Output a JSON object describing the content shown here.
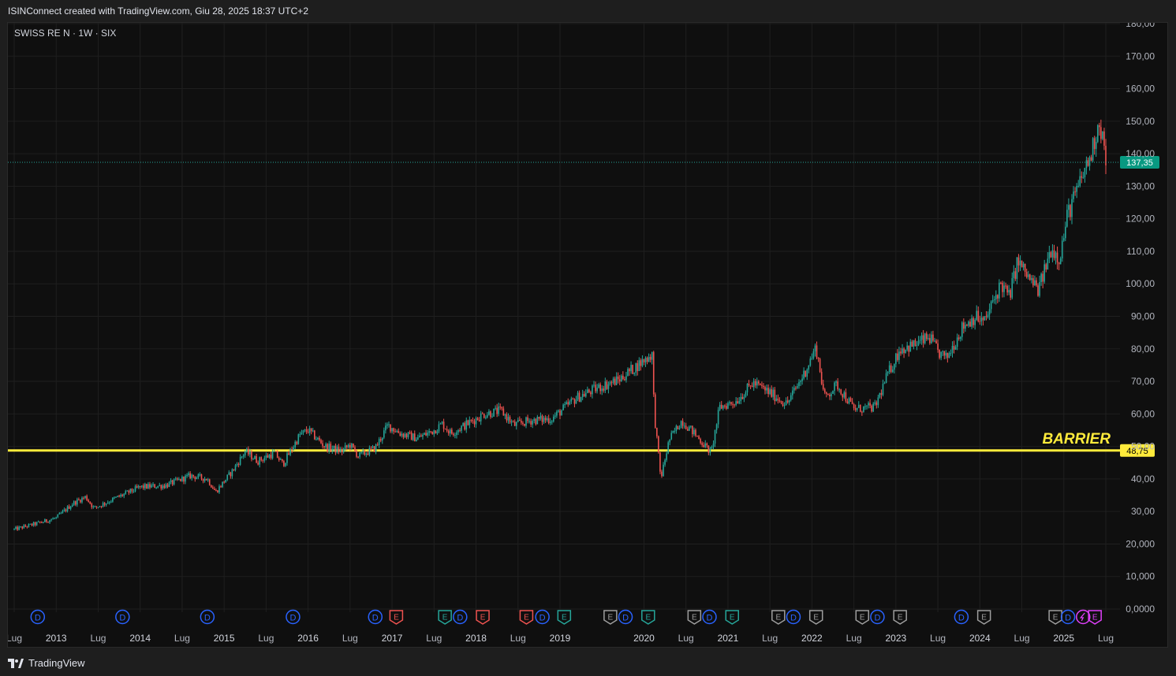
{
  "header": {
    "caption": "ISINConnect created with TradingView.com, Giu 28, 2025 18:37 UTC+2"
  },
  "footer": {
    "brand": "TradingView"
  },
  "colors": {
    "background": "#0f0f0f",
    "up": "#26a69a",
    "down": "#ef5350",
    "barrier": "#ffeb3b",
    "grid": "#1f1f1f",
    "dividend": "#2962ff",
    "earnings_gray": "#9e9e9e",
    "split": "#e040fb"
  },
  "chart_data": {
    "type": "candlestick",
    "symbol_label": "SWISS RE N · 1W · SIX",
    "y_axis": {
      "ticks": [
        "180,00",
        "170,00",
        "160,00",
        "150,00",
        "140,00",
        "130,00",
        "120,00",
        "110,00",
        "100,00",
        "90,00",
        "80,00",
        "70,00",
        "60,00",
        "50,00",
        "40,00",
        "30,00",
        "20,000",
        "10,000",
        "0,0000"
      ],
      "tick_values": [
        180,
        170,
        160,
        150,
        140,
        130,
        120,
        110,
        100,
        90,
        80,
        70,
        60,
        50,
        40,
        30,
        20,
        10,
        0
      ],
      "ylim": [
        0,
        180
      ]
    },
    "x_axis": {
      "labels": [
        {
          "t": "Lug",
          "d": 2012.5
        },
        {
          "t": "2013",
          "d": 2013.0
        },
        {
          "t": "Lug",
          "d": 2013.5
        },
        {
          "t": "2014",
          "d": 2014.0
        },
        {
          "t": "Lug",
          "d": 2014.5
        },
        {
          "t": "2015",
          "d": 2015.0
        },
        {
          "t": "Lug",
          "d": 2015.5
        },
        {
          "t": "2016",
          "d": 2016.0
        },
        {
          "t": "Lug",
          "d": 2016.5
        },
        {
          "t": "2017",
          "d": 2017.0
        },
        {
          "t": "Lug",
          "d": 2017.5
        },
        {
          "t": "2018",
          "d": 2018.0
        },
        {
          "t": "Lug",
          "d": 2018.5
        },
        {
          "t": "2019",
          "d": 2019.0
        },
        {
          "t": "2020",
          "d": 2020.0
        },
        {
          "t": "Lug",
          "d": 2020.5
        },
        {
          "t": "2021",
          "d": 2021.0
        },
        {
          "t": "Lug",
          "d": 2021.5
        },
        {
          "t": "2022",
          "d": 2022.0
        },
        {
          "t": "Lug",
          "d": 2022.5
        },
        {
          "t": "2023",
          "d": 2023.0
        },
        {
          "t": "Lug",
          "d": 2023.5
        },
        {
          "t": "2024",
          "d": 2024.0
        },
        {
          "t": "Lug",
          "d": 2024.5
        },
        {
          "t": "2025",
          "d": 2025.0
        },
        {
          "t": "Lug",
          "d": 2025.5
        }
      ],
      "xlim": [
        2012.5,
        2025.5
      ]
    },
    "price_path": [
      [
        2012.5,
        24.5
      ],
      [
        2012.8,
        26.5
      ],
      [
        2013.0,
        28.0
      ],
      [
        2013.2,
        32.5
      ],
      [
        2013.35,
        34.5
      ],
      [
        2013.45,
        31.0
      ],
      [
        2013.7,
        34.0
      ],
      [
        2014.0,
        37.5
      ],
      [
        2014.3,
        38.0
      ],
      [
        2014.6,
        41.0
      ],
      [
        2014.8,
        40.0
      ],
      [
        2014.9,
        36.0
      ],
      [
        2015.1,
        42.5
      ],
      [
        2015.25,
        48.5
      ],
      [
        2015.4,
        45.5
      ],
      [
        2015.6,
        48.0
      ],
      [
        2015.7,
        44.5
      ],
      [
        2015.9,
        53.5
      ],
      [
        2016.0,
        55.0
      ],
      [
        2016.2,
        50.0
      ],
      [
        2016.4,
        48.5
      ],
      [
        2016.5,
        50.5
      ],
      [
        2016.6,
        47.0
      ],
      [
        2016.8,
        49.5
      ],
      [
        2016.95,
        56.5
      ],
      [
        2017.1,
        54.0
      ],
      [
        2017.3,
        52.5
      ],
      [
        2017.5,
        55.0
      ],
      [
        2017.6,
        57.0
      ],
      [
        2017.7,
        54.0
      ],
      [
        2017.9,
        57.0
      ],
      [
        2018.1,
        60.0
      ],
      [
        2018.3,
        61.0
      ],
      [
        2018.45,
        56.5
      ],
      [
        2018.65,
        58.0
      ],
      [
        2018.9,
        58.5
      ],
      [
        2019.2,
        65.0
      ],
      [
        2019.45,
        68.0
      ],
      [
        2019.7,
        70.5
      ],
      [
        2019.95,
        75.5
      ],
      [
        2020.1,
        78.5
      ],
      [
        2020.12,
        61.0
      ],
      [
        2020.2,
        40.0
      ],
      [
        2020.3,
        52.0
      ],
      [
        2020.45,
        58.0
      ],
      [
        2020.6,
        54.0
      ],
      [
        2020.8,
        48.0
      ],
      [
        2020.9,
        62.0
      ],
      [
        2021.1,
        64.0
      ],
      [
        2021.3,
        69.5
      ],
      [
        2021.5,
        66.5
      ],
      [
        2021.7,
        63.0
      ],
      [
        2021.9,
        72.0
      ],
      [
        2022.05,
        80.5
      ],
      [
        2022.15,
        65.0
      ],
      [
        2022.3,
        69.0
      ],
      [
        2022.5,
        61.5
      ],
      [
        2022.75,
        62.0
      ],
      [
        2022.9,
        72.0
      ],
      [
        2023.05,
        80.0
      ],
      [
        2023.2,
        81.0
      ],
      [
        2023.4,
        83.5
      ],
      [
        2023.5,
        79.0
      ],
      [
        2023.6,
        77.0
      ],
      [
        2023.8,
        87.0
      ],
      [
        2023.95,
        90.0
      ],
      [
        2024.05,
        88.0
      ],
      [
        2024.25,
        100.0
      ],
      [
        2024.35,
        96.0
      ],
      [
        2024.45,
        107.0
      ],
      [
        2024.6,
        101.0
      ],
      [
        2024.7,
        98.0
      ],
      [
        2024.85,
        111.0
      ],
      [
        2024.95,
        108.0
      ],
      [
        2025.05,
        122.0
      ],
      [
        2025.15,
        128.0
      ],
      [
        2025.25,
        135.0
      ],
      [
        2025.33,
        140.0
      ],
      [
        2025.38,
        146.0
      ],
      [
        2025.42,
        150.5
      ],
      [
        2025.47,
        144.0
      ],
      [
        2025.5,
        137.35
      ]
    ],
    "last_price": 137.35,
    "last_price_label": "137,35",
    "barrier": {
      "value": 48.75,
      "label": "BARRIER",
      "price_label": "48,75"
    },
    "events": [
      {
        "type": "D",
        "d": 2012.78
      },
      {
        "type": "D",
        "d": 2013.79
      },
      {
        "type": "D",
        "d": 2014.8
      },
      {
        "type": "D",
        "d": 2015.82
      },
      {
        "type": "D",
        "d": 2016.8
      },
      {
        "type": "E",
        "d": 2017.05,
        "color": "red"
      },
      {
        "type": "E",
        "d": 2017.63,
        "color": "green"
      },
      {
        "type": "D",
        "d": 2017.81
      },
      {
        "type": "E",
        "d": 2018.08,
        "color": "red"
      },
      {
        "type": "E",
        "d": 2018.6,
        "color": "red"
      },
      {
        "type": "D",
        "d": 2018.79
      },
      {
        "type": "E",
        "d": 2019.05,
        "color": "green"
      },
      {
        "type": "E",
        "d": 2019.6,
        "color": "gray"
      },
      {
        "type": "D",
        "d": 2019.78
      },
      {
        "type": "E",
        "d": 2020.05,
        "color": "green"
      },
      {
        "type": "E",
        "d": 2020.6,
        "color": "gray"
      },
      {
        "type": "D",
        "d": 2020.78
      },
      {
        "type": "E",
        "d": 2021.05,
        "color": "green"
      },
      {
        "type": "E",
        "d": 2021.6,
        "color": "gray"
      },
      {
        "type": "D",
        "d": 2021.78
      },
      {
        "type": "E",
        "d": 2022.05,
        "color": "gray"
      },
      {
        "type": "E",
        "d": 2022.6,
        "color": "gray"
      },
      {
        "type": "D",
        "d": 2022.78
      },
      {
        "type": "E",
        "d": 2023.05,
        "color": "gray"
      },
      {
        "type": "D",
        "d": 2023.78
      },
      {
        "type": "E",
        "d": 2024.05,
        "color": "gray"
      },
      {
        "type": "E",
        "d": 2024.9,
        "color": "gray"
      },
      {
        "type": "D",
        "d": 2025.05
      },
      {
        "type": "S",
        "d": 2025.23
      },
      {
        "type": "E",
        "d": 2025.37,
        "color": "purple"
      }
    ]
  }
}
